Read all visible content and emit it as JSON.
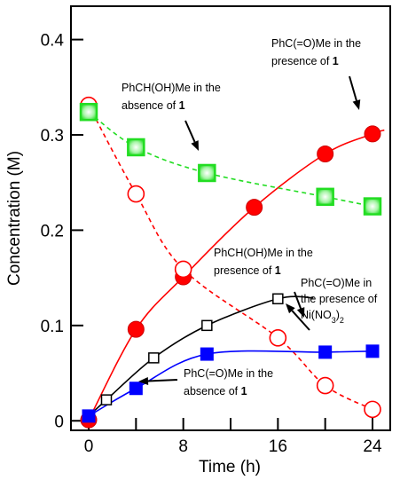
{
  "chart_data": {
    "type": "scatter",
    "xlabel": "Time (h)",
    "ylabel": "Concentration  (M)",
    "xlim": [
      -1.5,
      25.5
    ],
    "ylim": [
      -0.01,
      0.435
    ],
    "xticks": [
      0,
      8,
      16,
      24
    ],
    "xticks_minor": [
      4,
      12,
      20
    ],
    "yticks": [
      0,
      0.1,
      0.2,
      0.3,
      0.4
    ],
    "ytick_labels": [
      "0",
      "0.1",
      "0.2",
      "0.3",
      "0.4"
    ],
    "grid": false,
    "legend": "none",
    "series": [
      {
        "key": "s_red_filled",
        "marker": "filled-circle",
        "color": "#ff0000",
        "curve": "solid",
        "x": [
          0,
          4,
          8,
          14,
          20,
          24
        ],
        "y": [
          0.001,
          0.096,
          0.151,
          0.224,
          0.28,
          0.301
        ]
      },
      {
        "key": "s_red_open",
        "marker": "open-circle",
        "color": "#ff0000",
        "curve": "dashed",
        "x": [
          0,
          4,
          8,
          16,
          20,
          24
        ],
        "y": [
          0.331,
          0.238,
          0.159,
          0.087,
          0.037,
          0.012
        ]
      },
      {
        "key": "s_green",
        "marker": "square-gradient",
        "color": "#22dd22",
        "curve": "dashed",
        "x": [
          0,
          4,
          10,
          20,
          24
        ],
        "y": [
          0.324,
          0.287,
          0.26,
          0.235,
          0.225
        ]
      },
      {
        "key": "s_black_open",
        "marker": "open-square",
        "color": "#000000",
        "curve": "solid",
        "x": [
          0,
          1.5,
          5.5,
          10,
          16
        ],
        "y": [
          0.005,
          0.022,
          0.066,
          0.1,
          0.128
        ]
      },
      {
        "key": "s_blue_filled",
        "marker": "filled-square",
        "color": "#0000ff",
        "curve": "solid",
        "x": [
          0,
          4,
          10,
          20,
          24
        ],
        "y": [
          0.005,
          0.034,
          0.07,
          0.072,
          0.073
        ]
      }
    ],
    "annotations": [
      {
        "key": "ann_top",
        "lines": [
          {
            "text": "PhC(=O)Me in the"
          },
          {
            "text": "presence of ",
            "bold": "1"
          }
        ]
      },
      {
        "key": "ann_green",
        "lines": [
          {
            "text": "PhCH(OH)Me in the"
          },
          {
            "text": "absence of ",
            "bold": "1"
          }
        ]
      },
      {
        "key": "ann_mid",
        "lines": [
          {
            "text": "PhCH(OH)Me in the"
          },
          {
            "text": "presence of ",
            "bold": "1"
          }
        ]
      },
      {
        "key": "ann_ni",
        "lines": [
          {
            "text": "PhC(=O)Me in"
          },
          {
            "text": "the presence of"
          },
          {
            "text": "Ni(NO",
            "sub": "3",
            "tail": ")",
            "sub2": "2"
          }
        ]
      },
      {
        "key": "ann_blue",
        "lines": [
          {
            "text": "PhC(=O)Me in the"
          },
          {
            "text": "absence of ",
            "bold": "1"
          }
        ]
      }
    ]
  }
}
